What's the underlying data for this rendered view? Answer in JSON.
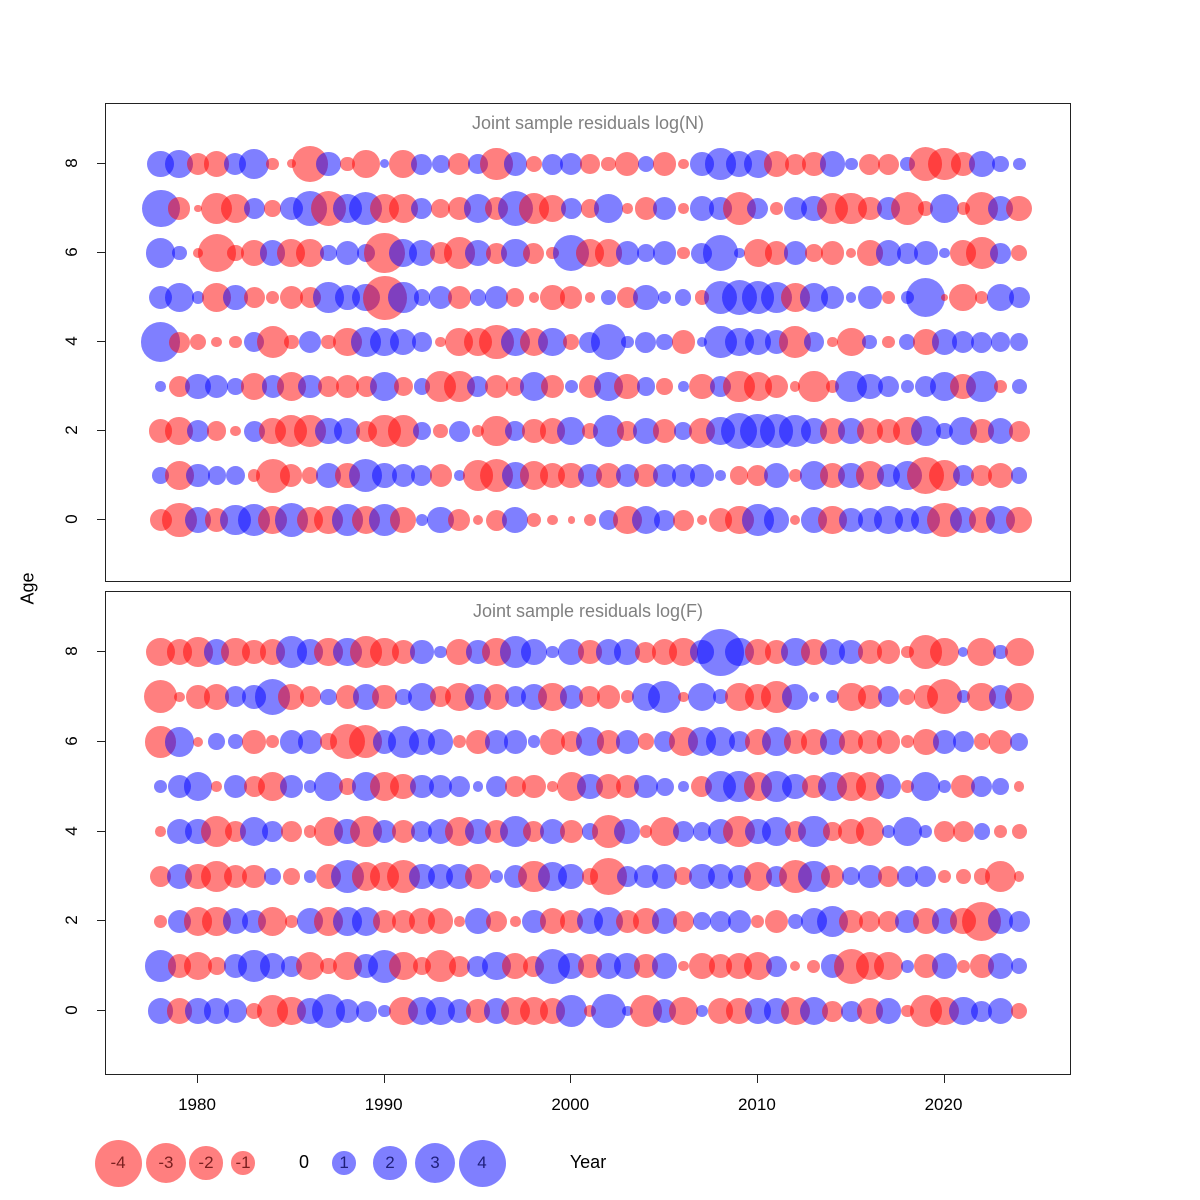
{
  "figure_titles": {
    "panel_n": "Joint sample residuals log(N)",
    "panel_f": "Joint sample residuals log(F)"
  },
  "axes": {
    "xlabel": "Year",
    "ylabel": "Age",
    "x_ticks": [
      1980,
      1990,
      2000,
      2010,
      2020
    ],
    "y_ticks": [
      0,
      2,
      4,
      6,
      8
    ],
    "x_range": [
      1977,
      2025
    ],
    "y_range": [
      -1,
      9
    ],
    "grid": "off",
    "tick_label_color": "#000000"
  },
  "legend": {
    "values": [
      -4,
      -3,
      -2,
      -1,
      0,
      1,
      2,
      3,
      4
    ],
    "negative_color": "#FF0000",
    "positive_color": "#0000FF",
    "fill_alpha": 0.5,
    "negative_label_color": "#7A1F1F",
    "positive_label_color": "#1F1F7A",
    "position": "bottom-left"
  },
  "colors": {
    "negative_bubble": "#FF0000",
    "positive_bubble": "#0000FF",
    "alpha": 0.5,
    "panel_title": "#808080",
    "panel_border": "#222222",
    "background": "#FFFFFF"
  },
  "chart_data": [
    {
      "type": "scatter",
      "subtype": "bubble-residuals",
      "panel_title": "Joint sample residuals log(N)",
      "x_years": [
        1978,
        1979,
        1980,
        1981,
        1982,
        1983,
        1984,
        1985,
        1986,
        1987,
        1988,
        1989,
        1990,
        1991,
        1992,
        1993,
        1994,
        1995,
        1996,
        1997,
        1998,
        1999,
        2000,
        2001,
        2002,
        2003,
        2004,
        2005,
        2006,
        2007,
        2008,
        2009,
        2010,
        2011,
        2012,
        2013,
        2014,
        2015,
        2016,
        2017,
        2018,
        2019,
        2020,
        2021,
        2022,
        2023,
        2024
      ],
      "series": [
        {
          "age": 8,
          "values": [
            1.3,
            1.4,
            -0.9,
            -1.2,
            0.9,
            1.6,
            -0.3,
            -0.15,
            -2.3,
            1.1,
            -0.4,
            -1.4,
            0.15,
            -1.4,
            0.8,
            0.6,
            -0.9,
            0.7,
            -1.9,
            1.0,
            -0.5,
            0.8,
            0.9,
            -0.7,
            -0.4,
            -1.1,
            0.5,
            -1.0,
            -0.2,
            1.0,
            1.8,
            1.2,
            1.5,
            -1.2,
            -0.8,
            -1.0,
            1.2,
            0.3,
            -0.8,
            -0.8,
            0.4,
            -2.0,
            -1.9,
            -1.0,
            1.2,
            0.5,
            0.3
          ]
        },
        {
          "age": 7,
          "values": [
            2.6,
            -0.9,
            -0.1,
            -1.8,
            -1.5,
            0.8,
            -0.5,
            1.0,
            2.2,
            -2.2,
            1.5,
            2.0,
            -1.6,
            -1.5,
            0.8,
            -0.7,
            -1.0,
            1.5,
            -1.0,
            2.2,
            -1.7,
            -1.4,
            0.8,
            -0.6,
            1.5,
            -0.2,
            -0.9,
            1.0,
            -0.2,
            1.1,
            0.9,
            -2.0,
            0.8,
            -0.3,
            1.0,
            1.2,
            -1.8,
            -1.8,
            -1.0,
            1.0,
            -2.0,
            -0.4,
            1.5,
            -0.3,
            -2.0,
            1.2,
            -1.2
          ]
        },
        {
          "age": 6,
          "values": [
            1.6,
            0.4,
            -0.2,
            -2.6,
            -0.5,
            -1.2,
            1.2,
            -1.4,
            -1.4,
            0.5,
            1.0,
            0.6,
            -3.0,
            1.4,
            1.2,
            -0.9,
            -1.8,
            1.3,
            -0.8,
            1.5,
            -0.8,
            -0.3,
            2.4,
            -1.5,
            -1.4,
            1.0,
            0.6,
            1.0,
            -0.3,
            0.8,
            2.3,
            0.2,
            -1.5,
            -1.0,
            1.0,
            -0.6,
            -1.0,
            -0.2,
            -1.2,
            1.2,
            0.8,
            1.0,
            0.2,
            -1.2,
            -1.8,
            0.8,
            -0.5
          ]
        },
        {
          "age": 5,
          "values": [
            1.0,
            1.5,
            0.3,
            -1.5,
            1.1,
            -0.8,
            -0.3,
            -1.0,
            -0.8,
            1.7,
            1.1,
            1.4,
            -3.5,
            1.7,
            0.5,
            1.0,
            -1.0,
            0.5,
            1.0,
            -0.6,
            -0.2,
            -1.1,
            -0.9,
            -0.2,
            0.4,
            -0.8,
            1.2,
            0.3,
            0.5,
            -0.4,
            2.0,
            2.2,
            1.9,
            1.8,
            -1.5,
            1.5,
            1.0,
            0.2,
            1.0,
            -0.3,
            0.3,
            2.8,
            -0.1,
            -1.4,
            -0.3,
            1.3,
            0.8
          ]
        },
        {
          "age": 4,
          "values": [
            2.8,
            -0.8,
            -0.5,
            -0.2,
            -0.3,
            0.7,
            -1.9,
            -0.4,
            0.9,
            -0.4,
            -1.5,
            1.6,
            1.5,
            1.2,
            0.7,
            -0.2,
            -1.4,
            -1.4,
            -2.2,
            1.5,
            -1.5,
            1.5,
            -0.5,
            0.8,
            2.3,
            0.3,
            0.8,
            0.5,
            -1.0,
            0.2,
            1.9,
            1.5,
            1.3,
            1.0,
            -1.8,
            0.7,
            -0.2,
            -1.5,
            0.4,
            -0.3,
            0.5,
            -1.2,
            1.2,
            0.9,
            0.8,
            0.7,
            0.6
          ]
        },
        {
          "age": 3,
          "values": [
            0.2,
            -0.8,
            1.2,
            1.0,
            0.5,
            -1.3,
            0.9,
            -1.5,
            1.0,
            -0.8,
            -1.0,
            -0.8,
            1.6,
            -0.7,
            0.5,
            -1.8,
            -1.7,
            0.8,
            -1.0,
            -0.6,
            1.5,
            -1.0,
            0.3,
            -0.9,
            1.5,
            -1.2,
            0.6,
            -0.5,
            0.2,
            -1.2,
            0.8,
            -1.8,
            -1.5,
            -1.0,
            -0.2,
            -1.8,
            -0.3,
            1.8,
            1.2,
            0.8,
            0.3,
            0.8,
            1.5,
            -1.2,
            1.8,
            -0.3,
            0.4
          ]
        },
        {
          "age": 2,
          "values": [
            -1.0,
            -1.4,
            0.9,
            -0.7,
            -0.2,
            0.8,
            -1.3,
            -1.9,
            -1.8,
            1.3,
            1.2,
            -0.8,
            -1.9,
            -1.8,
            0.6,
            -0.4,
            0.8,
            -0.3,
            -1.7,
            0.7,
            -1.0,
            -1.2,
            1.4,
            -0.5,
            1.8,
            -0.7,
            1.2,
            -1.0,
            0.6,
            -1.2,
            1.5,
            2.4,
            2.2,
            2.0,
            1.8,
            1.2,
            -1.2,
            1.2,
            -1.2,
            -1.0,
            -1.5,
            1.7,
            0.5,
            1.4,
            -1.0,
            1.2,
            -0.8
          ]
        },
        {
          "age": 1,
          "values": [
            0.5,
            -1.5,
            1.0,
            0.6,
            0.7,
            -0.3,
            -2.1,
            -0.9,
            -0.5,
            1.2,
            -1.1,
            2.0,
            1.1,
            1.0,
            0.8,
            -0.9,
            0.2,
            -1.7,
            -2.0,
            1.3,
            -1.5,
            -1.2,
            -1.2,
            1.0,
            -1.2,
            1.0,
            -1.0,
            0.9,
            1.0,
            1.0,
            0.2,
            -0.6,
            -0.8,
            1.2,
            -0.3,
            1.5,
            -1.2,
            1.2,
            -1.5,
            1.0,
            1.5,
            -2.5,
            -1.8,
            0.8,
            -0.8,
            -1.2,
            0.5
          ]
        },
        {
          "age": 0,
          "values": [
            -0.9,
            -2.2,
            1.3,
            -1.0,
            1.7,
            1.8,
            -1.5,
            2.0,
            -1.3,
            -1.5,
            1.8,
            -1.5,
            1.8,
            -1.2,
            0.3,
            1.3,
            -0.9,
            -0.2,
            -0.8,
            1.2,
            -0.4,
            -0.2,
            -0.1,
            -0.3,
            0.7,
            -1.5,
            1.5,
            0.8,
            -0.8,
            -0.2,
            -1.0,
            -1.5,
            1.8,
            1.2,
            -0.2,
            1.2,
            -1.5,
            1.0,
            1.0,
            1.5,
            1.0,
            1.5,
            -2.2,
            1.2,
            -1.2,
            1.5,
            -1.2
          ]
        }
      ]
    },
    {
      "type": "scatter",
      "subtype": "bubble-residuals",
      "panel_title": "Joint sample residuals log(F)",
      "x_years": [
        1978,
        1979,
        1980,
        1981,
        1982,
        1983,
        1984,
        1985,
        1986,
        1987,
        1988,
        1989,
        1990,
        1991,
        1992,
        1993,
        1994,
        1995,
        1996,
        1997,
        1998,
        1999,
        2000,
        2001,
        2002,
        2003,
        2004,
        2005,
        2006,
        2007,
        2008,
        2009,
        2010,
        2011,
        2012,
        2013,
        2014,
        2015,
        2016,
        2017,
        2018,
        2019,
        2020,
        2021,
        2022,
        2023,
        2024
      ],
      "series": [
        {
          "age": 8,
          "values": [
            -1.5,
            -1.2,
            -1.6,
            1.2,
            -1.5,
            -1.0,
            -1.2,
            1.8,
            1.2,
            -1.5,
            1.5,
            -1.8,
            -1.5,
            -1.0,
            1.0,
            0.3,
            -1.2,
            1.0,
            -1.5,
            1.8,
            1.2,
            0.3,
            1.2,
            -1.0,
            1.2,
            1.2,
            -0.8,
            -1.2,
            -1.5,
            1.0,
            4.0,
            1.5,
            -1.2,
            -1.0,
            1.5,
            -1.2,
            1.2,
            1.0,
            -1.0,
            -1.0,
            -0.3,
            -2.0,
            -1.5,
            0.2,
            -1.5,
            0.4,
            -1.5
          ]
        },
        {
          "age": 7,
          "values": [
            -2.0,
            -0.2,
            -1.0,
            -1.2,
            0.8,
            1.0,
            2.3,
            -1.2,
            -0.8,
            0.5,
            -1.0,
            1.2,
            -1.1,
            0.5,
            1.5,
            -0.8,
            -1.5,
            1.2,
            -1.2,
            0.8,
            1.2,
            -1.5,
            1.0,
            -0.8,
            -1.0,
            -0.3,
            1.5,
            1.9,
            -0.2,
            1.5,
            0.4,
            -1.5,
            -1.2,
            -1.8,
            1.2,
            0.2,
            0.3,
            -1.5,
            -1.0,
            0.8,
            -0.5,
            -1.0,
            -2.2,
            0.3,
            -1.5,
            1.0,
            -1.5
          ]
        },
        {
          "age": 6,
          "values": [
            -1.8,
            1.6,
            -0.2,
            0.5,
            0.4,
            -1.0,
            -0.3,
            1.0,
            1.0,
            -0.5,
            -2.2,
            -2.0,
            1.0,
            1.8,
            1.2,
            1.2,
            -0.3,
            -1.0,
            1.0,
            1.0,
            0.3,
            -1.2,
            -0.8,
            1.5,
            -1.0,
            1.0,
            -0.5,
            0.8,
            -1.5,
            1.5,
            1.5,
            0.8,
            -1.2,
            1.5,
            -1.0,
            -1.2,
            1.2,
            -1.0,
            -1.0,
            -1.0,
            -0.3,
            -1.2,
            1.0,
            0.8,
            -0.5,
            -1.0,
            0.6
          ]
        },
        {
          "age": 5,
          "values": [
            0.3,
            1.0,
            1.5,
            -0.2,
            1.0,
            -0.8,
            -1.5,
            1.0,
            0.3,
            1.5,
            -0.5,
            1.5,
            -1.5,
            -1.2,
            1.0,
            1.0,
            0.8,
            0.2,
            0.8,
            -0.8,
            -1.0,
            -0.2,
            -1.5,
            1.2,
            -1.2,
            -1.0,
            1.0,
            0.6,
            0.2,
            -0.8,
            1.8,
            1.8,
            -1.5,
            1.8,
            1.2,
            -1.0,
            1.5,
            -1.5,
            -1.5,
            1.2,
            -0.3,
            1.5,
            0.3,
            -1.0,
            0.8,
            0.5,
            -0.2
          ]
        },
        {
          "age": 4,
          "values": [
            -0.2,
            1.2,
            1.2,
            -1.8,
            -0.8,
            1.5,
            0.8,
            -0.8,
            -0.3,
            -1.5,
            1.2,
            -1.8,
            1.0,
            -1.0,
            0.8,
            1.2,
            -1.5,
            1.2,
            -1.0,
            1.8,
            -0.8,
            1.2,
            -1.0,
            0.5,
            -2.0,
            1.2,
            -0.3,
            -1.5,
            0.8,
            0.6,
            1.2,
            -1.8,
            1.2,
            1.5,
            -0.8,
            1.8,
            -0.6,
            -1.2,
            -1.5,
            0.3,
            1.5,
            0.3,
            -0.8,
            -0.8,
            0.5,
            -0.3,
            -0.4
          ]
        },
        {
          "age": 3,
          "values": [
            -0.8,
            1.2,
            -1.2,
            -1.8,
            -1.0,
            -1.0,
            0.5,
            -0.5,
            0.3,
            -1.2,
            2.0,
            -1.5,
            -1.5,
            -2.0,
            1.2,
            1.2,
            1.2,
            -1.2,
            0.3,
            1.0,
            -1.8,
            1.5,
            1.2,
            -0.5,
            -2.5,
            0.8,
            1.0,
            1.2,
            -0.6,
            1.2,
            1.2,
            1.0,
            -1.5,
            0.8,
            -2.0,
            1.8,
            -1.0,
            0.6,
            1.0,
            -0.8,
            0.8,
            0.8,
            -0.3,
            -0.4,
            -0.5,
            -1.8,
            -0.2
          ]
        },
        {
          "age": 2,
          "values": [
            -0.3,
            1.0,
            -1.5,
            -1.5,
            1.2,
            1.0,
            -1.5,
            -0.3,
            1.2,
            -1.5,
            1.5,
            1.5,
            -1.0,
            -1.0,
            -1.2,
            -1.2,
            -0.2,
            1.2,
            -0.8,
            -0.2,
            1.0,
            -1.2,
            -1.0,
            1.2,
            1.5,
            -1.0,
            -1.2,
            1.2,
            -0.8,
            0.6,
            0.8,
            1.0,
            -0.3,
            -1.0,
            0.4,
            1.2,
            1.8,
            -1.0,
            -0.8,
            -0.8,
            1.0,
            -1.2,
            1.2,
            -1.2,
            -2.8,
            1.2,
            0.8
          ]
        },
        {
          "age": 1,
          "values": [
            1.8,
            -1.0,
            -1.5,
            -0.6,
            1.0,
            1.8,
            1.2,
            0.8,
            -1.5,
            -0.5,
            -1.5,
            1.0,
            2.0,
            -1.5,
            -0.6,
            -1.8,
            -0.8,
            0.8,
            1.5,
            -1.2,
            -0.8,
            2.2,
            1.2,
            -1.0,
            1.2,
            1.2,
            -1.0,
            1.2,
            -0.2,
            -1.2,
            -1.0,
            -1.2,
            -1.5,
            0.8,
            -0.2,
            -0.3,
            1.0,
            -2.2,
            -1.5,
            -1.5,
            0.3,
            -1.0,
            1.2,
            -0.3,
            -1.0,
            1.2,
            0.5
          ]
        },
        {
          "age": 0,
          "values": [
            1.2,
            -1.2,
            1.2,
            1.2,
            1.0,
            -0.5,
            -1.8,
            -1.5,
            1.2,
            2.0,
            1.0,
            0.8,
            0.3,
            -1.5,
            1.5,
            1.5,
            1.0,
            -1.0,
            1.2,
            -1.5,
            -1.5,
            -1.2,
            1.8,
            -0.3,
            2.2,
            0.2,
            -1.8,
            1.0,
            -1.5,
            0.3,
            -1.2,
            -1.2,
            1.2,
            1.2,
            -1.5,
            1.5,
            -0.8,
            0.8,
            -1.2,
            1.2,
            -0.3,
            -1.8,
            -1.5,
            1.5,
            0.8,
            1.2,
            -0.5
          ]
        }
      ]
    }
  ]
}
